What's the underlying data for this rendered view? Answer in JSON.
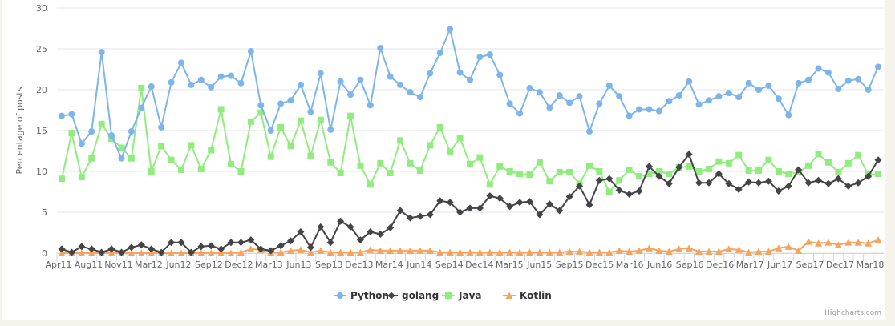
{
  "chart_data": {
    "type": "line",
    "title": "",
    "ylabel": "Percentage of posts",
    "xlabel": "",
    "ylim": [
      0,
      30
    ],
    "yticks": [
      0,
      5,
      10,
      15,
      20,
      25,
      30
    ],
    "grid": true,
    "legend_position": "bottom",
    "x_tick_labels": [
      "Apr11",
      "Aug11",
      "Nov11",
      "Mar12",
      "Jun12",
      "Sep12",
      "Dec12",
      "Mar13",
      "Jun13",
      "Sep13",
      "Dec13",
      "Mar14",
      "Jun14",
      "Sep14",
      "Dec14",
      "Mar15",
      "Jun15",
      "Sep15",
      "Dec15",
      "Mar16",
      "Jun16",
      "Sep16",
      "Dec16",
      "Mar17",
      "Jun17",
      "Sep17",
      "Dec17",
      "Mar18"
    ],
    "series": [
      {
        "name": "Python",
        "color": "#7cb5ec",
        "marker": "circle",
        "values": [
          16.8,
          17.0,
          13.4,
          14.9,
          24.6,
          14.4,
          11.6,
          14.9,
          17.8,
          20.4,
          15.4,
          20.9,
          23.3,
          20.6,
          21.2,
          20.3,
          21.6,
          21.7,
          20.8,
          24.7,
          18.1,
          15.0,
          18.3,
          18.7,
          20.6,
          17.3,
          22.0,
          15.1,
          21.0,
          19.4,
          21.2,
          18.1,
          25.1,
          21.6,
          20.6,
          19.7,
          19.1,
          22.0,
          24.5,
          27.4,
          22.1,
          21.2,
          24.0,
          24.3,
          21.8,
          18.3,
          17.1,
          20.2,
          19.7,
          17.8,
          19.3,
          18.4,
          19.2,
          14.9,
          18.3,
          20.5,
          19.2,
          16.8,
          17.6,
          17.6,
          17.4,
          18.6,
          19.3,
          21.0,
          18.2,
          18.7,
          19.2,
          19.6,
          19.1,
          20.8,
          20.0,
          20.5,
          18.9,
          16.9,
          20.8,
          21.2,
          22.6,
          22.1,
          20.1,
          21.1,
          21.3,
          20.0,
          22.8
        ]
      },
      {
        "name": "golang",
        "color": "#434348",
        "marker": "diamond",
        "values": [
          0.5,
          0.1,
          0.8,
          0.5,
          0.1,
          0.5,
          0.1,
          0.7,
          1.0,
          0.5,
          0.1,
          1.3,
          1.3,
          0.1,
          0.8,
          0.9,
          0.5,
          1.3,
          1.3,
          1.6,
          0.5,
          0.3,
          0.9,
          1.5,
          2.6,
          0.7,
          3.2,
          1.3,
          3.9,
          3.2,
          1.6,
          2.6,
          2.3,
          3.1,
          5.2,
          4.3,
          4.5,
          4.7,
          6.4,
          6.2,
          5.0,
          5.5,
          5.5,
          7.0,
          6.7,
          5.7,
          6.2,
          6.3,
          4.7,
          6.0,
          5.2,
          6.9,
          8.2,
          5.9,
          8.9,
          9.1,
          7.7,
          7.2,
          7.6,
          10.6,
          9.4,
          8.5,
          10.5,
          12.1,
          8.6,
          8.6,
          9.7,
          8.5,
          7.8,
          8.7,
          8.6,
          8.8,
          7.6,
          8.2,
          10.2,
          8.6,
          8.9,
          8.5,
          9.1,
          8.2,
          8.6,
          9.4,
          11.4
        ]
      },
      {
        "name": "Java",
        "color": "#90ed7d",
        "marker": "square",
        "values": [
          9.1,
          14.7,
          9.3,
          11.6,
          15.8,
          14.0,
          12.9,
          11.6,
          20.2,
          10.0,
          13.1,
          11.4,
          10.2,
          13.2,
          10.3,
          12.6,
          17.6,
          10.9,
          10.0,
          16.1,
          17.2,
          11.8,
          15.4,
          13.1,
          16.2,
          11.9,
          16.3,
          11.1,
          9.8,
          16.8,
          10.7,
          8.4,
          11.0,
          9.8,
          13.8,
          11.0,
          10.1,
          13.2,
          15.4,
          12.4,
          14.1,
          10.9,
          11.7,
          8.4,
          10.6,
          10.0,
          9.7,
          9.6,
          11.1,
          8.8,
          9.9,
          9.9,
          8.5,
          10.7,
          10.0,
          7.5,
          8.9,
          10.2,
          9.4,
          9.7,
          10.0,
          9.7,
          10.5,
          10.6,
          10.0,
          10.3,
          11.2,
          11.0,
          12.0,
          10.1,
          10.1,
          11.4,
          10.0,
          9.7,
          9.9,
          10.7,
          12.1,
          11.1,
          9.9,
          11.0,
          12.0,
          9.6,
          9.7
        ]
      },
      {
        "name": "Kotlin",
        "color": "#f7a35c",
        "marker": "triangle",
        "values": [
          0,
          0,
          0,
          0,
          0,
          0,
          0,
          0,
          0,
          0,
          0,
          0,
          0,
          0,
          0,
          0,
          0,
          0,
          0.1,
          0.5,
          0.4,
          0.1,
          0.1,
          0.3,
          0.4,
          0.1,
          0.3,
          0.1,
          0.1,
          0.1,
          0.1,
          0.4,
          0.3,
          0.3,
          0.3,
          0.3,
          0.3,
          0.3,
          0.1,
          0.1,
          0.1,
          0.1,
          0.1,
          0.1,
          0.1,
          0.1,
          0.1,
          0.1,
          0.1,
          0.1,
          0.1,
          0.2,
          0.2,
          0.1,
          0.1,
          0.1,
          0.3,
          0.2,
          0.3,
          0.6,
          0.3,
          0.2,
          0.5,
          0.6,
          0.2,
          0.2,
          0.2,
          0.5,
          0.4,
          0.1,
          0.2,
          0.2,
          0.6,
          0.8,
          0.3,
          1.4,
          1.2,
          1.3,
          1.0,
          1.3,
          1.3,
          1.2,
          1.6
        ]
      }
    ]
  },
  "credits": "Highcharts.com"
}
